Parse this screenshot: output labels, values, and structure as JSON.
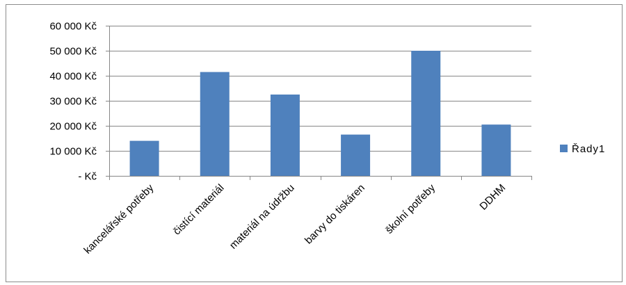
{
  "chart_data": {
    "type": "bar",
    "title": "",
    "xlabel": "",
    "ylabel": "",
    "categories": [
      "kancelářské potřeby",
      "čistící materiál",
      "materiál na údržbu",
      "barvy do tiskáren",
      "školní potřeby",
      "DDHM"
    ],
    "series": [
      {
        "name": "Řady1",
        "values": [
          14000,
          41500,
          32500,
          16500,
          50000,
          20500
        ],
        "color": "#4f81bd"
      }
    ],
    "ylim": [
      0,
      60000
    ],
    "yticks": [
      0,
      10000,
      20000,
      30000,
      40000,
      50000,
      60000
    ],
    "ytick_labels": [
      "- Kč",
      "10 000 Kč",
      "20 000 Kč",
      "30 000 Kč",
      "40 000 Kč",
      "50 000 Kč",
      "60 000 Kč"
    ],
    "grid": true,
    "legend_position": "right",
    "colors": {
      "bar": "#4f81bd",
      "grid": "#878787",
      "axis": "#878787"
    }
  }
}
